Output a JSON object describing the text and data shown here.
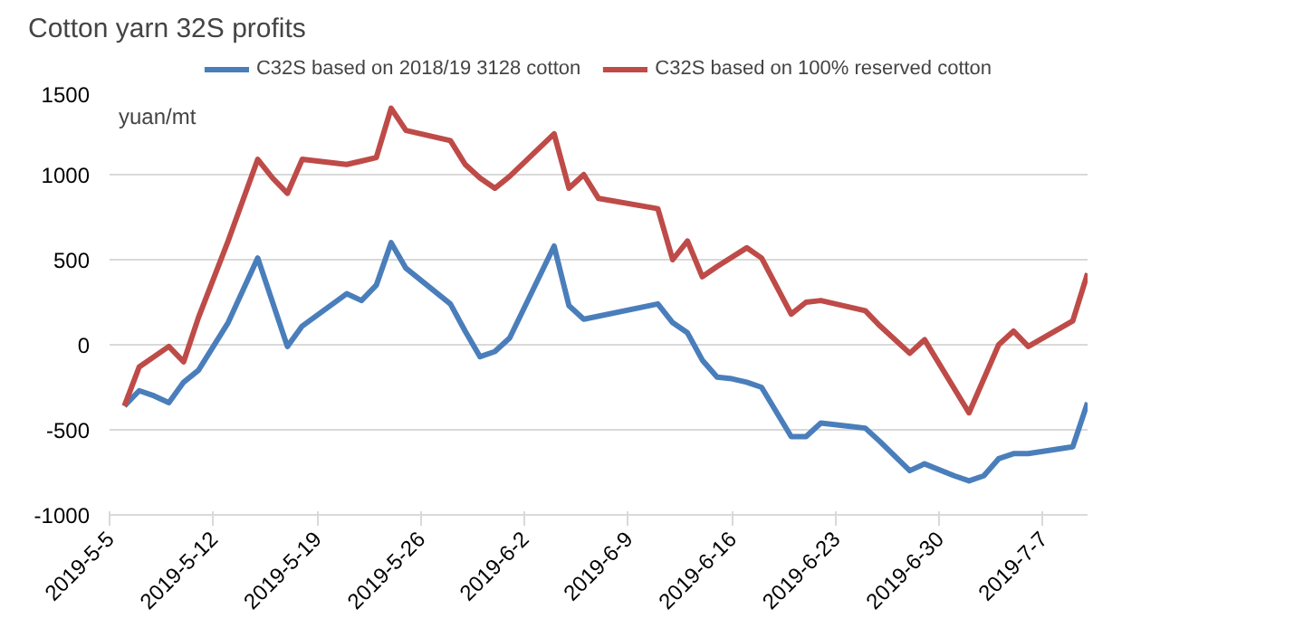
{
  "chart_data": {
    "type": "line",
    "title": "Cotton yarn 32S profits",
    "ylabel": "yuan/mt",
    "xlim": [
      "2019-05-05",
      "2019-07-10"
    ],
    "ylim": [
      -1000,
      1500
    ],
    "xticks": [
      {
        "value": "2019-05-05",
        "label": "2019-5-5"
      },
      {
        "value": "2019-05-12",
        "label": "2019-5-12"
      },
      {
        "value": "2019-05-19",
        "label": "2019-5-19"
      },
      {
        "value": "2019-05-26",
        "label": "2019-5-26"
      },
      {
        "value": "2019-06-02",
        "label": "2019-6-2"
      },
      {
        "value": "2019-06-09",
        "label": "2019-6-9"
      },
      {
        "value": "2019-06-16",
        "label": "2019-6-16"
      },
      {
        "value": "2019-06-23",
        "label": "2019-6-23"
      },
      {
        "value": "2019-06-30",
        "label": "2019-6-30"
      },
      {
        "value": "2019-07-07",
        "label": "2019-7-7"
      }
    ],
    "yticks": [
      -1000,
      -500,
      0,
      500,
      1000,
      1500
    ],
    "grid": "y",
    "legend": "top",
    "marker": "none",
    "line_style": "solid",
    "series": [
      {
        "name": "C32S based on 2018/19 3128 cotton",
        "color": "#4a7ebb",
        "x": [
          "2019-05-06",
          "2019-05-07",
          "2019-05-08",
          "2019-05-09",
          "2019-05-10",
          "2019-05-11",
          "2019-05-13",
          "2019-05-15",
          "2019-05-17",
          "2019-05-18",
          "2019-05-21",
          "2019-05-22",
          "2019-05-23",
          "2019-05-24",
          "2019-05-25",
          "2019-05-28",
          "2019-05-29",
          "2019-05-30",
          "2019-05-31",
          "2019-06-01",
          "2019-06-04",
          "2019-06-05",
          "2019-06-06",
          "2019-06-11",
          "2019-06-12",
          "2019-06-13",
          "2019-06-14",
          "2019-06-15",
          "2019-06-16",
          "2019-06-17",
          "2019-06-18",
          "2019-06-20",
          "2019-06-21",
          "2019-06-22",
          "2019-06-24",
          "2019-06-25",
          "2019-06-26",
          "2019-06-28",
          "2019-06-29",
          "2019-07-01",
          "2019-07-02",
          "2019-07-03",
          "2019-07-04",
          "2019-07-05",
          "2019-07-06",
          "2019-07-09",
          "2019-07-10"
        ],
        "values": [
          -360,
          -270,
          -300,
          -340,
          -220,
          -150,
          130,
          510,
          -10,
          110,
          300,
          260,
          350,
          600,
          450,
          240,
          80,
          -70,
          -40,
          40,
          580,
          230,
          150,
          240,
          130,
          70,
          -90,
          -190,
          -200,
          -220,
          -250,
          -540,
          -540,
          -460,
          -480,
          -490,
          -570,
          -740,
          -700,
          -770,
          -800,
          -770,
          -670,
          -640,
          -640,
          -600,
          -340
        ]
      },
      {
        "name": "C32S based on 100% reserved cotton",
        "color": "#be4b48",
        "x": [
          "2019-05-06",
          "2019-05-07",
          "2019-05-09",
          "2019-05-10",
          "2019-05-11",
          "2019-05-13",
          "2019-05-15",
          "2019-05-16",
          "2019-05-17",
          "2019-05-18",
          "2019-05-21",
          "2019-05-22",
          "2019-05-23",
          "2019-05-24",
          "2019-05-25",
          "2019-05-28",
          "2019-05-29",
          "2019-05-30",
          "2019-05-31",
          "2019-06-01",
          "2019-06-04",
          "2019-06-05",
          "2019-06-06",
          "2019-06-07",
          "2019-06-11",
          "2019-06-12",
          "2019-06-13",
          "2019-06-14",
          "2019-06-15",
          "2019-06-17",
          "2019-06-18",
          "2019-06-20",
          "2019-06-21",
          "2019-06-22",
          "2019-06-25",
          "2019-06-26",
          "2019-06-28",
          "2019-06-29",
          "2019-07-02",
          "2019-07-04",
          "2019-07-05",
          "2019-07-06",
          "2019-07-09",
          "2019-07-10"
        ],
        "values": [
          -360,
          -130,
          -10,
          -100,
          160,
          610,
          1090,
          980,
          890,
          1090,
          1060,
          1080,
          1100,
          1390,
          1260,
          1200,
          1060,
          980,
          920,
          990,
          1240,
          920,
          1000,
          860,
          800,
          500,
          610,
          400,
          460,
          570,
          510,
          180,
          250,
          260,
          200,
          110,
          -50,
          30,
          -400,
          0,
          80,
          -10,
          140,
          420
        ]
      }
    ]
  }
}
